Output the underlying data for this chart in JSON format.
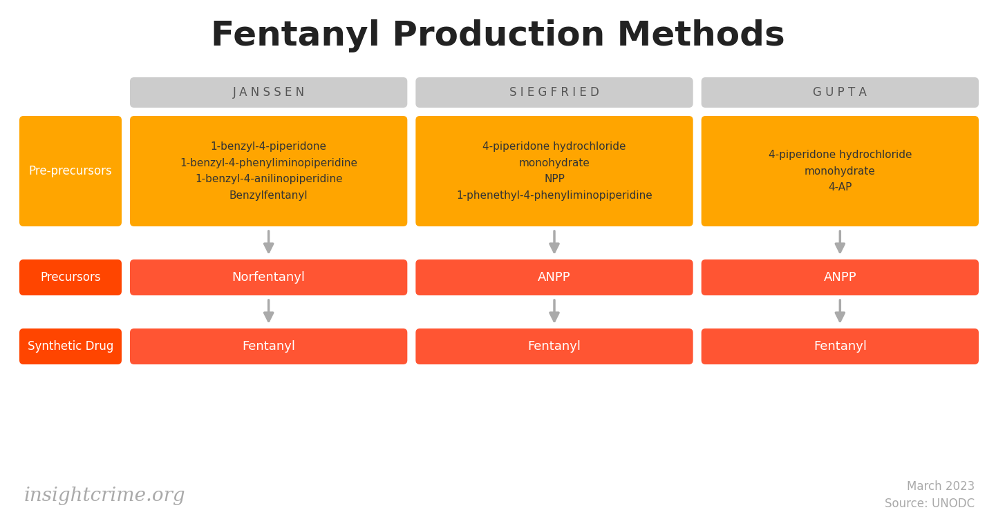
{
  "title": "Fentanyl Production Methods",
  "title_fontsize": 36,
  "title_fontweight": "bold",
  "background_color": "#ffffff",
  "footer_left": "insightcrime.org",
  "footer_right_line1": "March 2023",
  "footer_right_line2": "Source: UNODC",
  "footer_color": "#aaaaaa",
  "columns": [
    "J A N S S E N",
    "S I E G F R I E D",
    "G U P T A"
  ],
  "header_bg": "#cccccc",
  "header_text_color": "#555555",
  "header_fontsize": 13,
  "row_labels": [
    "Pre-precursors",
    "Precursors",
    "Synthetic Drug"
  ],
  "row_label_bg_preprecursors": "#FFA500",
  "row_label_bg_precursors": "#FF4500",
  "row_label_bg_synthetic": "#FF4500",
  "yellow_bg": "#FFA500",
  "red_bg": "#FF5533",
  "cell_text_color_yellow": "#333333",
  "arrow_color": "#aaaaaa",
  "cells_preprecursors": [
    "1-benzyl-4-piperidone\n1-benzyl-4-phenyliminopiperidine\n1-benzyl-4-anilinopiperidine\nBenzylfentanyl",
    "4-piperidone hydrochloride\nmonohydrate\nNPP\n1-phenethyl-4-phenyliminopiperidine",
    "4-piperidone hydrochloride\nmonohydrate\n4-AP"
  ],
  "cells_precursors": [
    "Norfentanyl",
    "ANPP",
    "ANPP"
  ],
  "cells_synthetic": [
    "Fentanyl",
    "Fentanyl",
    "Fentanyl"
  ]
}
